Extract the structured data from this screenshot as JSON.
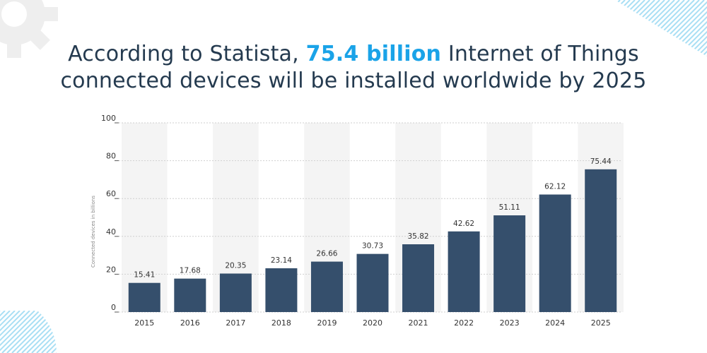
{
  "headline": {
    "prefix": "According to Statista, ",
    "highlight": "75.4 billion",
    "suffix": " Internet of Things",
    "line2": "connected devices will be installed worldwide by 2025"
  },
  "colors": {
    "title": "#243a4f",
    "highlight": "#1aa3e8",
    "bar": "#354f6c",
    "band": "#f4f4f4",
    "decor_gray": "#eeeeee",
    "decor_stripe": "#a9dff4"
  },
  "decorations": {
    "top_left": "gear-icon",
    "top_right": "diagonal-stripes",
    "bottom_left": "diagonal-stripes"
  },
  "chart_data": {
    "type": "bar",
    "categories": [
      "2015",
      "2016",
      "2017",
      "2018",
      "2019",
      "2020",
      "2021",
      "2022",
      "2023",
      "2024",
      "2025"
    ],
    "values": [
      15.41,
      17.68,
      20.35,
      23.14,
      26.66,
      30.73,
      35.82,
      42.62,
      51.11,
      62.12,
      75.44
    ],
    "title": "",
    "xlabel": "",
    "ylabel": "Connected devices in billions",
    "ylim": [
      0,
      100
    ],
    "yticks": [
      0,
      20,
      40,
      60,
      80,
      100
    ],
    "grid": true,
    "legend": "none"
  }
}
